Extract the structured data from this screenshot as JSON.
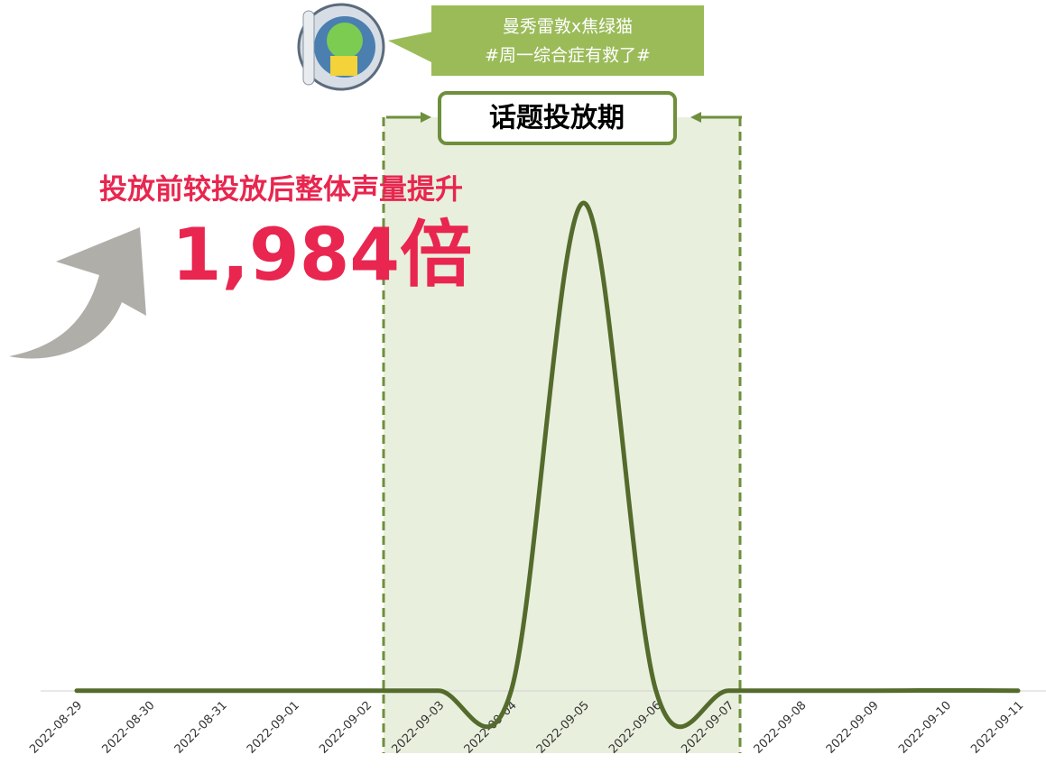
{
  "chart_data": {
    "type": "line",
    "categories": [
      "2022-08-29",
      "2022-08-30",
      "2022-08-31",
      "2022-09-01",
      "2022-09-02",
      "2022-09-03",
      "2022-09-04",
      "2022-09-05",
      "2022-09-06",
      "2022-09-07",
      "2022-09-08",
      "2022-09-09",
      "2022-09-10",
      "2022-09-11"
    ],
    "values": [
      1,
      1,
      1,
      1,
      1,
      1,
      1,
      1985,
      1,
      1,
      1,
      1,
      2,
      1
    ],
    "color": "#546b2c",
    "annotations": {
      "callout": [
        "曼秀雷敦x焦绿猫",
        "#周一综合症有救了#"
      ],
      "period_label": "话题投放期",
      "headline": "投放前较投放后整体声量提升",
      "multiple": "1,984倍"
    }
  }
}
